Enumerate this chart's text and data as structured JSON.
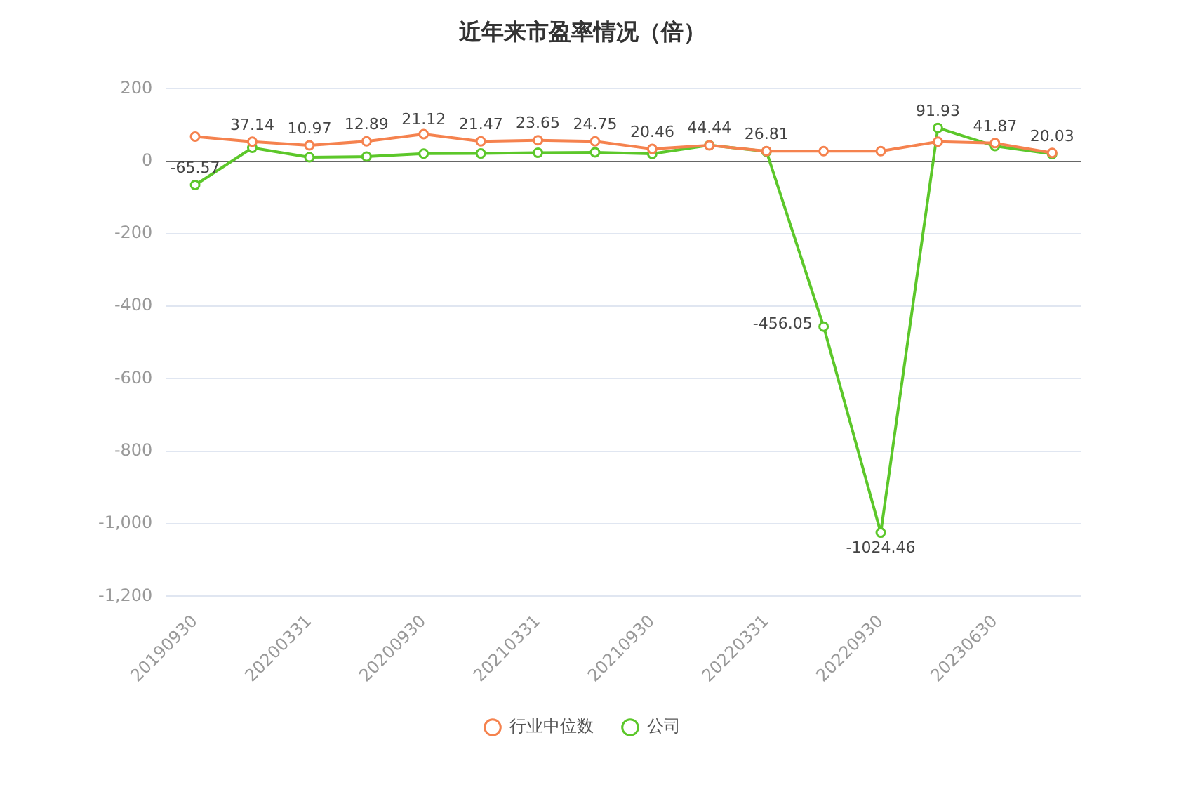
{
  "chart_data": {
    "type": "line",
    "title": "近年来市盈率情况（倍）",
    "categories": [
      "20190930",
      null,
      "20200331",
      null,
      "20200930",
      null,
      "20210331",
      null,
      "20210930",
      null,
      "20220331",
      null,
      "20220930",
      null,
      "20230630",
      null
    ],
    "series": [
      {
        "name": "公司",
        "color": "#5cc72a",
        "values": [
          -65.57,
          37.14,
          10.97,
          12.89,
          21.12,
          21.47,
          23.65,
          24.75,
          20.46,
          44.44,
          26.81,
          -456.05,
          -1024.46,
          91.93,
          41.87,
          20.03
        ],
        "value_labels": [
          "-65.57",
          "37.14",
          "10.97",
          "12.89",
          "21.12",
          "21.47",
          "23.65",
          "24.75",
          "20.46",
          "44.44",
          "26.81",
          "-456.05",
          "-1024.46",
          "91.93",
          "41.87",
          "20.03"
        ]
      },
      {
        "name": "行业中位数",
        "color": "#f5824e",
        "values": [
          68,
          54,
          44,
          55,
          75,
          55,
          58,
          55,
          34,
          44,
          28,
          28,
          28,
          54,
          50,
          23
        ]
      }
    ],
    "ylim": [
      -1200,
      200
    ],
    "yticks": [
      200,
      0,
      -200,
      -400,
      -600,
      -800,
      {
        "value": -1000,
        "label": "-1,000"
      },
      {
        "value": -1200,
        "label": "-1,200"
      }
    ],
    "grid": "y",
    "legend": "bottom",
    "marker": "circle",
    "line_style": "solid"
  }
}
